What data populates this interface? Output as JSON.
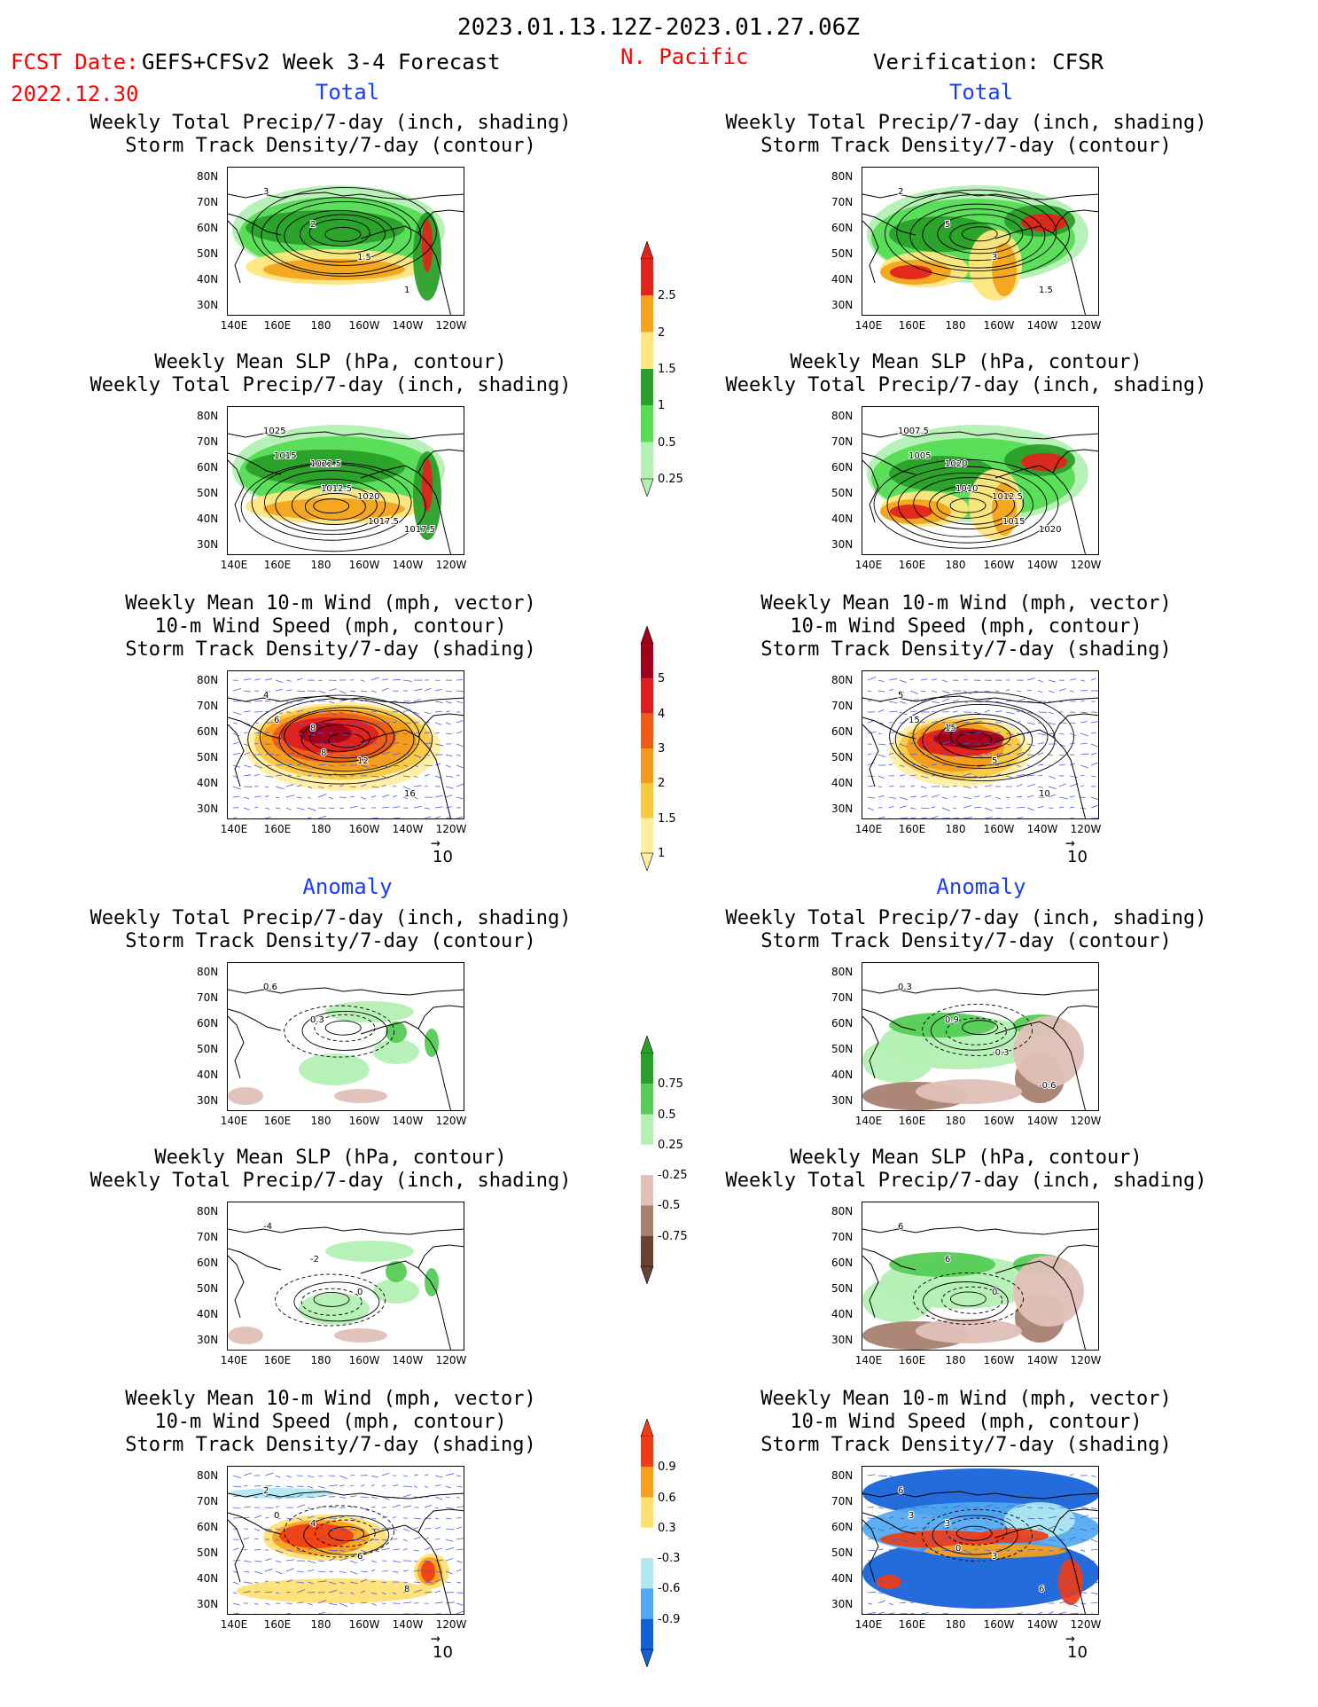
{
  "header": {
    "period": "2023.01.13.12Z-2023.01.27.06Z",
    "fcst_label": "FCST Date:",
    "fcst_date": "2022.12.30",
    "model": "GEFS+CFSv2 Week 3-4 Forecast",
    "region": "N. Pacific",
    "verification": "Verification: CFSR",
    "total_label": "Total",
    "anomaly_label": "Anomaly",
    "vector_ref": "10"
  },
  "titles": {
    "precip_storm": [
      "Weekly Total Precip/7-day (inch, shading)",
      "Storm Track Density/7-day (contour)"
    ],
    "slp_precip": [
      "Weekly Mean SLP (hPa, contour)",
      "Weekly Total Precip/7-day (inch, shading)"
    ],
    "wind_storm": [
      "Weekly Mean 10-m Wind (mph, vector)",
      "10-m Wind Speed (mph, contour)",
      "Storm Track Density/7-day (shading)"
    ]
  },
  "axes": {
    "lat_labels": [
      "80N",
      "70N",
      "60N",
      "50N",
      "40N",
      "30N"
    ],
    "lon_labels": [
      "140E",
      "160E",
      "180",
      "160W",
      "140W",
      "120W"
    ]
  },
  "colorbars": [
    {
      "name": "precip-total",
      "labels": [
        "2.5",
        "2",
        "1.5",
        "1",
        "0.5",
        "0.25"
      ],
      "colors": [
        "#e0241c",
        "#f3a41c",
        "#ffe680",
        "#2aa02a",
        "#55dd55",
        "#b4f0b4"
      ]
    },
    {
      "name": "storm-total",
      "labels": [
        "5",
        "4",
        "3",
        "2",
        "1.5",
        "1"
      ],
      "colors": [
        "#a0001c",
        "#e01c1c",
        "#f05a14",
        "#f39a1c",
        "#f8c840",
        "#ffeea0"
      ]
    },
    {
      "name": "precip-anom",
      "labels": [
        "0.75",
        "0.5",
        "0.25",
        "-0.25",
        "-0.5",
        "-0.75"
      ],
      "colors": [
        "#2aa02a",
        "#55cc55",
        "#b4f0b4",
        "#ffffff",
        "#e0c0b8",
        "#a88070",
        "#6a4030"
      ]
    },
    {
      "name": "storm-anom",
      "labels": [
        "0.9",
        "0.6",
        "0.3",
        "-0.3",
        "-0.6",
        "-0.9"
      ],
      "colors": [
        "#f03c14",
        "#f8a01c",
        "#ffe070",
        "#ffffff",
        "#b0e8f0",
        "#50a8f0",
        "#1060d8"
      ]
    }
  ],
  "panels": {
    "fcst_precip": {
      "labels": [
        "3",
        "2",
        "1.5",
        "1"
      ]
    },
    "fcst_slp": {
      "labels": [
        "1025",
        "1022.5",
        "1020",
        "1017.5",
        "1015",
        "1012.5",
        "1017.5"
      ]
    },
    "fcst_wind": {
      "labels": [
        "4",
        "8",
        "12",
        "16",
        "6",
        "8"
      ]
    },
    "ver_precip": {
      "labels": [
        "2",
        "5",
        "3",
        "1.5"
      ]
    },
    "ver_slp": {
      "labels": [
        "1007.5",
        "1020",
        "1012.5",
        "1020",
        "1005",
        "1010",
        "1015"
      ]
    },
    "ver_wind": {
      "labels": [
        "5",
        "15",
        "5",
        "10",
        "15"
      ]
    },
    "fcst_precip_anom": {
      "labels": [
        "0.6",
        "0.3"
      ]
    },
    "fcst_slp_anom": {
      "labels": [
        "-4",
        "-2",
        "0"
      ]
    },
    "fcst_wind_anom": {
      "labels": [
        "2",
        "4",
        "6",
        "8",
        "0"
      ]
    },
    "ver_precip_anom": {
      "labels": [
        "0.3",
        "0.9",
        "-0.3",
        "-0.6"
      ]
    },
    "ver_slp_anom": {
      "labels": [
        "6",
        "6",
        "0"
      ]
    },
    "ver_wind_anom": {
      "labels": [
        "6",
        "3",
        "3",
        "6",
        "3",
        "0"
      ]
    }
  },
  "colors": {
    "accent_red": "#ff0000",
    "accent_blue": "#1a3cff"
  }
}
